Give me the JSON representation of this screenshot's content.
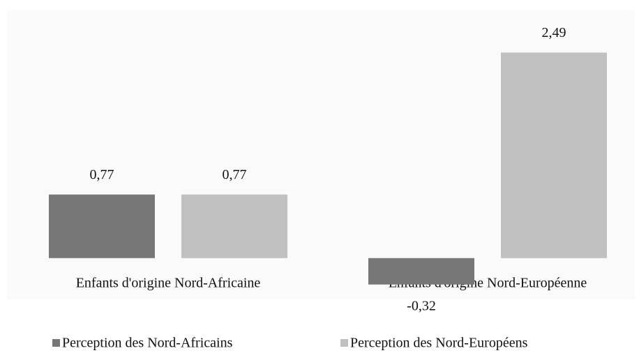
{
  "chart_data": {
    "type": "bar",
    "categories": [
      "Enfants d'origine Nord-Africaine",
      "Enfants d'origine Nord-Européenne"
    ],
    "series": [
      {
        "name": "Perception des Nord-Africains",
        "color": "#777777",
        "values": [
          0.77,
          -0.32
        ],
        "value_labels": [
          "0,77",
          "-0,32"
        ]
      },
      {
        "name": "Perception des Nord-Européens",
        "color": "#c0c0c0",
        "values": [
          0.77,
          2.49
        ],
        "value_labels": [
          "0,77",
          "2,49"
        ]
      }
    ],
    "ylim": [
      -0.5,
      3.0
    ],
    "legend": "bottom"
  }
}
